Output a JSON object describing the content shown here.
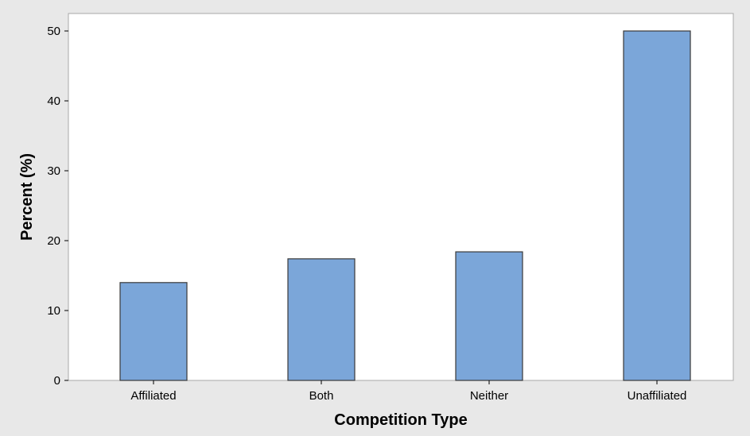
{
  "chart_data": {
    "type": "bar",
    "title": "",
    "xlabel": "Competition Type",
    "ylabel": "Percent (%)",
    "categories": [
      "Affiliated",
      "Both",
      "Neither",
      "Unaffiliated"
    ],
    "values": [
      14.0,
      17.4,
      18.4,
      50.0
    ],
    "ylim": [
      0,
      52.5
    ],
    "yticks": [
      0,
      10,
      20,
      30,
      40,
      50
    ],
    "grid": false,
    "legend": "none",
    "bar_color": "#7ba6d9",
    "bar_edge_color": "#3a3a3a",
    "plot_background": "#ffffff",
    "figure_background": "#e8e8e8"
  }
}
